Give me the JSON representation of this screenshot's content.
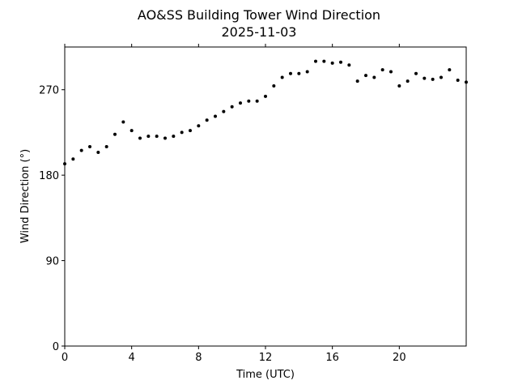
{
  "chart_data": {
    "type": "scatter",
    "title": "AO&SS Building Tower Wind Direction",
    "subtitle": "2025-11-03",
    "xlabel": "Time (UTC)",
    "ylabel": "Wind Direction (°)",
    "xlim": [
      0,
      24
    ],
    "ylim": [
      0,
      315
    ],
    "xticks": [
      0,
      4,
      8,
      12,
      16,
      20
    ],
    "yticks": [
      0,
      90,
      180,
      270
    ],
    "grid": false,
    "marker_color": "#000000",
    "x": [
      0,
      0.5,
      1,
      1.5,
      2,
      2.5,
      3,
      3.5,
      4,
      4.5,
      5,
      5.5,
      6,
      6.5,
      7,
      7.5,
      8,
      8.5,
      9,
      9.5,
      10,
      10.5,
      11,
      11.5,
      12,
      12.5,
      13,
      13.5,
      14,
      14.5,
      15,
      15.5,
      16,
      16.5,
      17,
      17.5,
      18,
      18.5,
      19,
      19.5,
      20,
      20.5,
      21,
      21.5,
      22,
      22.5,
      23,
      23.5,
      24
    ],
    "y": [
      192,
      197,
      206,
      210,
      204,
      210,
      223,
      236,
      227,
      219,
      221,
      221,
      219,
      221,
      225,
      227,
      232,
      238,
      242,
      247,
      252,
      256,
      258,
      258,
      263,
      274,
      283,
      287,
      287,
      289,
      300,
      300,
      298,
      299,
      296,
      279,
      285,
      283,
      291,
      289,
      274,
      279,
      287,
      282,
      281,
      283,
      291,
      280,
      278
    ]
  }
}
